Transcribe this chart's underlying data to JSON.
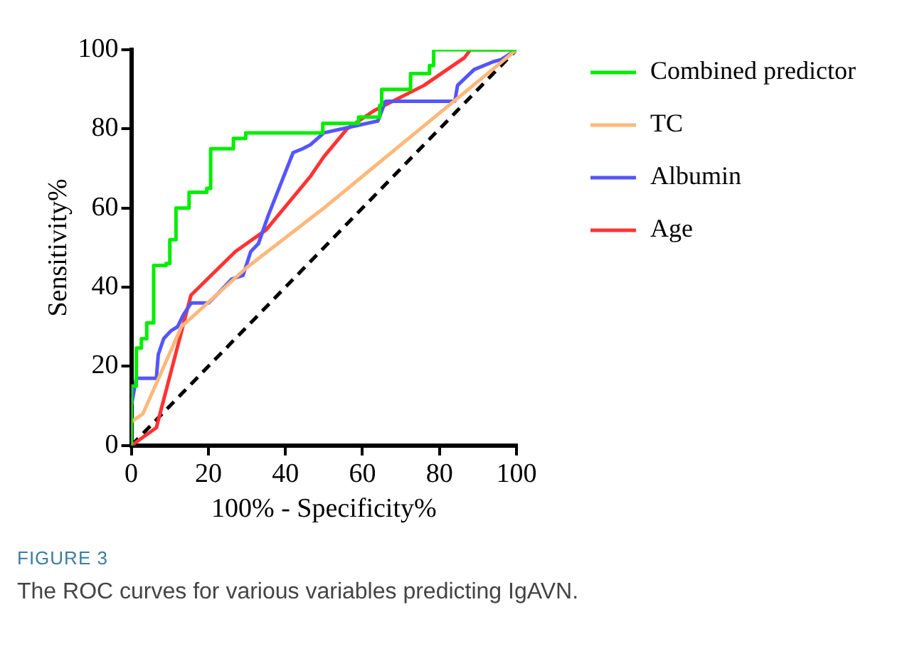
{
  "chart_data": {
    "type": "line",
    "xlabel": "100% - Specificity%",
    "ylabel": "Sensitivity%",
    "xlim": [
      0,
      100
    ],
    "ylim": [
      0,
      100
    ],
    "xticks": [
      0,
      20,
      40,
      60,
      80,
      100
    ],
    "yticks": [
      0,
      20,
      40,
      60,
      80,
      100
    ],
    "grid": false,
    "legend": "right",
    "marker": "none",
    "line_style": "solid",
    "series": [
      {
        "name": "Combined predictor",
        "color": "#00ee00",
        "x": [
          0,
          0,
          1.3,
          1.3,
          2.6,
          2.6,
          4,
          4,
          5.8,
          5.8,
          9,
          9,
          10,
          10,
          11.6,
          11.6,
          15,
          15,
          19.6,
          19.6,
          20.6,
          20.6,
          26.5,
          26.5,
          29.7,
          29.7,
          49.7,
          49.7,
          59,
          59,
          64.5,
          64.5,
          65,
          65,
          72.5,
          72.5,
          77.4,
          77.4,
          78.5,
          78.5,
          100
        ],
        "values": [
          0,
          15,
          15,
          24.6,
          24.6,
          27,
          27,
          31,
          31,
          45.5,
          45.5,
          46,
          46,
          52,
          52,
          60,
          60,
          64,
          64,
          65,
          65,
          75,
          75,
          77.6,
          77.6,
          79,
          79,
          81.4,
          81.4,
          83,
          83,
          86,
          86,
          90,
          90,
          94,
          94,
          96,
          96,
          100,
          100
        ]
      },
      {
        "name": "TC",
        "color": "#ffb87a",
        "x": [
          0,
          0,
          3,
          13,
          30,
          50,
          80,
          100
        ],
        "values": [
          0,
          6,
          8,
          30,
          45,
          60,
          84,
          100
        ]
      },
      {
        "name": "Albumin",
        "color": "#5555ff",
        "x": [
          0,
          0,
          1.3,
          6.5,
          7,
          8.4,
          10.3,
          12,
          13.5,
          15.5,
          20,
          22.6,
          26,
          29,
          31,
          33,
          35.5,
          42,
          44.5,
          46.5,
          50,
          64,
          66,
          84,
          84.7,
          89,
          94,
          96,
          100
        ],
        "values": [
          0,
          10,
          17,
          17,
          23,
          27,
          29,
          30,
          33,
          36,
          36,
          38.5,
          42,
          43,
          49,
          51,
          58,
          74,
          75,
          76,
          79,
          82,
          87,
          87,
          91,
          95,
          97,
          97.5,
          100
        ]
      },
      {
        "name": "Age",
        "color": "#ff3333",
        "x": [
          0,
          6.5,
          15.5,
          27,
          35,
          46.5,
          50,
          56,
          63,
          76,
          86.5,
          88,
          100
        ],
        "values": [
          0,
          4.5,
          38,
          49,
          54.5,
          68,
          73,
          80,
          84.6,
          91,
          98,
          100,
          100
        ]
      },
      {
        "color": "#000000",
        "line_style": "dashed",
        "x": [
          0,
          100
        ],
        "values": [
          0,
          100
        ]
      }
    ],
    "annotations": [
      "FIGURE 3",
      "The ROC curves for various variables predicting IgAVN."
    ]
  }
}
